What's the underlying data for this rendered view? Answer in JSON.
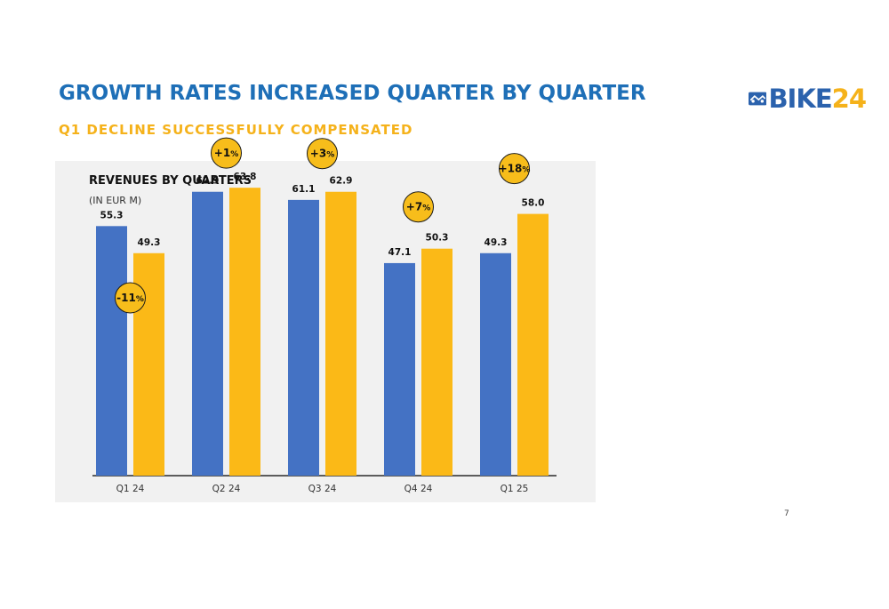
{
  "slide": {
    "title": "GROWTH RATES INCREASED QUARTER BY QUARTER",
    "subtitle": "Q1 DECLINE SUCCESSFULLY COMPENSATED",
    "page_number": "7"
  },
  "logo": {
    "text_main": "BIKE",
    "text_number": "24",
    "icon": "bike24-logo-icon"
  },
  "colors": {
    "title": "#1e6fb7",
    "accent": "#f5b21b",
    "previous_year_bar": "#4472c4",
    "current_year_bar": "#fbb917",
    "growth_badge": "#f7bd1b",
    "panel_background": "#f1f1f1"
  },
  "chart_data": {
    "type": "bar",
    "title": "REVENUES BY QUARTERS",
    "unit": "(IN EUR M)",
    "categories": [
      "Q1 24",
      "Q2 24",
      "Q3 24",
      "Q4 24",
      "Q1 25"
    ],
    "series": [
      {
        "values": [
          55.3,
          62.9,
          61.1,
          47.1,
          49.3
        ]
      },
      {
        "values": [
          49.3,
          63.8,
          62.9,
          50.3,
          58.0
        ]
      }
    ],
    "value_labels": [
      [
        "55.3",
        "62.9",
        "61.1",
        "47.1",
        "49.3"
      ],
      [
        "49.3",
        "63.8",
        "62.9",
        "50.3",
        "58.0"
      ]
    ],
    "growth_labels": [
      {
        "value": "-11",
        "unit": "%"
      },
      {
        "value": "+1",
        "unit": "%"
      },
      {
        "value": "+3",
        "unit": "%"
      },
      {
        "value": "+7",
        "unit": "%"
      },
      {
        "value": "+18",
        "unit": "%"
      }
    ],
    "ylim": [
      0,
      66
    ],
    "grid": false,
    "legend": "none"
  }
}
